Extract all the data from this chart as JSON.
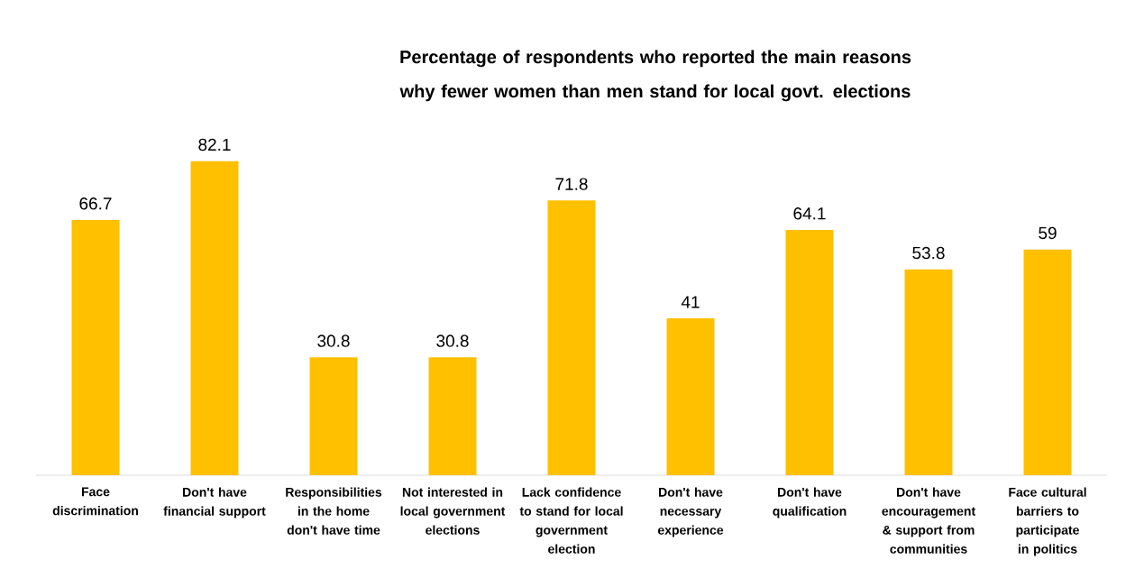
{
  "chart_data": {
    "type": "bar",
    "title": "Percentage of respondents who reported the main reasons why fewer women than men stand for local govt. elections",
    "categories": [
      "Face discrimination",
      "Don't have financial support",
      "Responsibilities in the home don't have time",
      "Not interested in local government elections",
      "Lack confidence to stand for local government election",
      "Don't have necessary experience",
      "Don't have qualification",
      "Don't have encouragement & support from communities",
      "Face cultural barriers to participate in politics"
    ],
    "values": [
      66.7,
      82.1,
      30.8,
      30.8,
      71.8,
      41,
      64.1,
      53.8,
      59
    ],
    "color": "#ffc000",
    "data_labels": true
  }
}
